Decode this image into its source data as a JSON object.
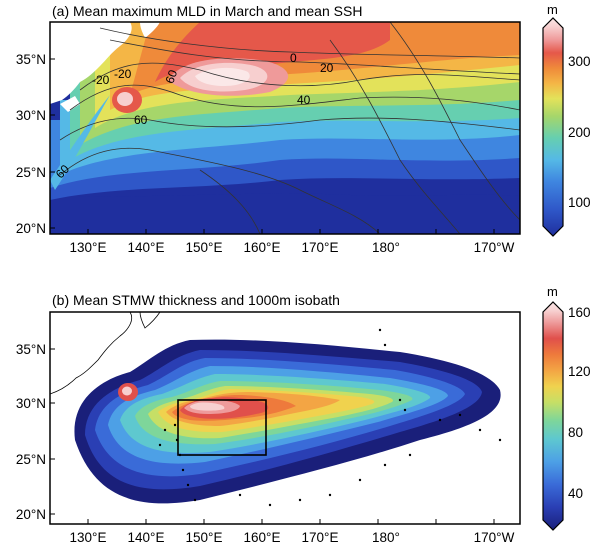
{
  "panels": [
    {
      "title": "(a) Mean maximum MLD in March and mean SSH",
      "lat_labels": [
        "35°N",
        "30°N",
        "25°N",
        "20°N"
      ],
      "lon_labels": [
        "130°E",
        "140°E",
        "150°E",
        "160°E",
        "170°E",
        "180°",
        "170°W"
      ],
      "colorbar": {
        "unit": "m",
        "ticks": [
          "300",
          "200",
          "100"
        ],
        "colors": [
          "#1f2f9e",
          "#2f57c8",
          "#3f86e0",
          "#55b9e6",
          "#66cfb0",
          "#a6d66a",
          "#e3e25a",
          "#f4b646",
          "#ef8a3a",
          "#e5584a",
          "#ef9a9a",
          "#f7cfcf",
          "#fbe8e8"
        ]
      },
      "contour_labels": [
        "-20",
        "-20",
        "0",
        "20",
        "40",
        "60",
        "60",
        "60"
      ]
    },
    {
      "title": "(b) Mean STMW thickness and 1000m isobath",
      "lat_labels": [
        "35°N",
        "30°N",
        "25°N",
        "20°N"
      ],
      "lon_labels": [
        "130°E",
        "140°E",
        "150°E",
        "160°E",
        "170°E",
        "180°",
        "170°W"
      ],
      "colorbar": {
        "unit": "m",
        "ticks": [
          "160",
          "120",
          "80",
          "40"
        ],
        "colors": [
          "#1a1f7a",
          "#2a3fb4",
          "#3a6bd8",
          "#4da0e6",
          "#5ec8cf",
          "#7ed69a",
          "#c6df66",
          "#f0d24e",
          "#f3a544",
          "#ee7a3c",
          "#e0504b",
          "#ee9b9b",
          "#f7cfcf",
          "#fbe8e8"
        ]
      }
    }
  ],
  "colors": {
    "land": "#ffffff",
    "ocean_deep": "#1f2f9e",
    "box": "#000000"
  }
}
